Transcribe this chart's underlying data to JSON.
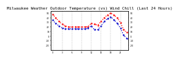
{
  "title": "Milwaukee Weather Outdoor Temperature (vs) Wind Chill (Last 24 Hours)",
  "title_fontsize": 4.2,
  "background_color": "#ffffff",
  "grid_color": "#aaaaaa",
  "temp_color": "#ff0000",
  "windchill_color": "#0000cc",
  "ylim": [
    -30,
    55
  ],
  "yticks": [
    -20,
    -10,
    0,
    10,
    20,
    30,
    40,
    50
  ],
  "n_hours": 24,
  "temp": [
    48,
    40,
    32,
    26,
    22,
    20,
    20,
    20,
    20,
    20,
    20,
    21,
    28,
    26,
    24,
    32,
    40,
    46,
    50,
    46,
    40,
    30,
    14,
    8
  ],
  "windchill": [
    35,
    28,
    22,
    18,
    16,
    16,
    16,
    16,
    16,
    16,
    16,
    18,
    22,
    14,
    14,
    22,
    32,
    38,
    42,
    36,
    28,
    18,
    2,
    -5
  ]
}
